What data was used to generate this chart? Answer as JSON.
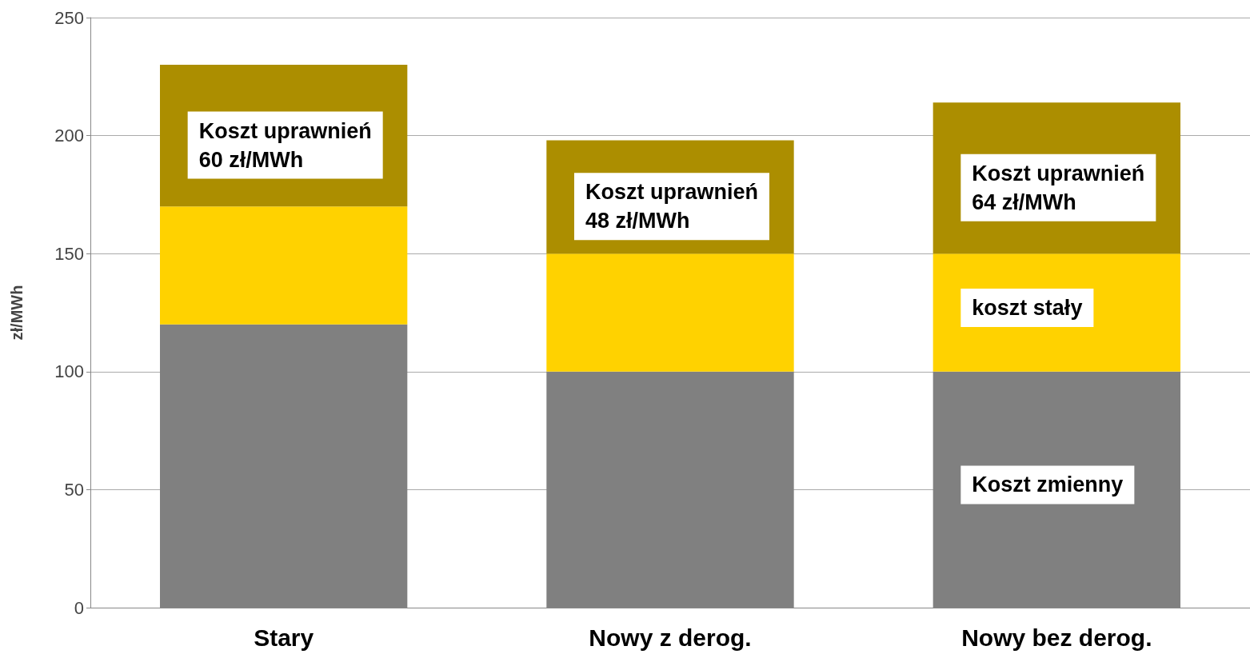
{
  "chart_data": {
    "type": "bar",
    "stacked": true,
    "ylabel": "zł/MWh",
    "categories": [
      "Stary",
      "Nowy z derog.",
      "Nowy bez derog."
    ],
    "series": [
      {
        "color": "#808080",
        "values": [
          120,
          100,
          100
        ]
      },
      {
        "color": "#ffd200",
        "values": [
          50,
          50,
          50
        ]
      },
      {
        "color": "#ac8e00",
        "values": [
          60,
          48,
          64
        ]
      }
    ],
    "ylim": [
      0,
      250
    ],
    "yticks": [
      0,
      50,
      100,
      150,
      200,
      250
    ],
    "grid": "y",
    "annotations": [
      "Koszt uprawnień\n60 zł/MWh",
      "Koszt uprawnień\n48 zł/MWh",
      "Koszt uprawnień\n64 zł/MWh",
      "koszt stały",
      "Koszt zmienny"
    ]
  }
}
